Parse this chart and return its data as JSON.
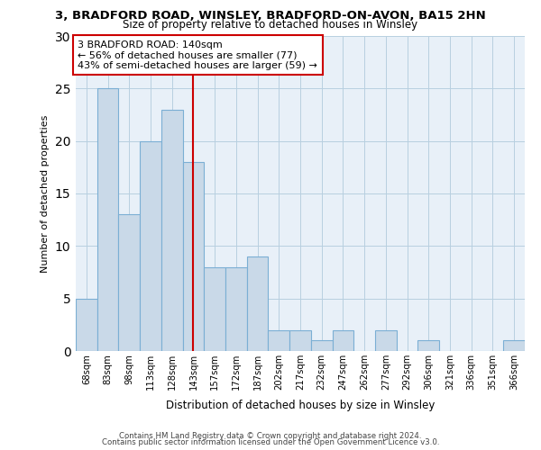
{
  "title_line1": "3, BRADFORD ROAD, WINSLEY, BRADFORD-ON-AVON, BA15 2HN",
  "title_line2": "Size of property relative to detached houses in Winsley",
  "xlabel": "Distribution of detached houses by size in Winsley",
  "ylabel": "Number of detached properties",
  "bin_labels": [
    "68sqm",
    "83sqm",
    "98sqm",
    "113sqm",
    "128sqm",
    "143sqm",
    "157sqm",
    "172sqm",
    "187sqm",
    "202sqm",
    "217sqm",
    "232sqm",
    "247sqm",
    "262sqm",
    "277sqm",
    "292sqm",
    "306sqm",
    "321sqm",
    "336sqm",
    "351sqm",
    "366sqm"
  ],
  "bar_heights": [
    5,
    25,
    13,
    20,
    23,
    18,
    8,
    8,
    9,
    2,
    2,
    1,
    2,
    0,
    2,
    0,
    1,
    0,
    0,
    0,
    1
  ],
  "bar_color": "#c9d9e8",
  "bar_edge_color": "#7bafd4",
  "vline_color": "#cc0000",
  "annotation_text": "3 BRADFORD ROAD: 140sqm\n← 56% of detached houses are smaller (77)\n43% of semi-detached houses are larger (59) →",
  "annotation_box_color": "#cc0000",
  "ylim": [
    0,
    30
  ],
  "yticks": [
    0,
    5,
    10,
    15,
    20,
    25,
    30
  ],
  "grid_color": "#b8cfe0",
  "background_color": "#ffffff",
  "footer_line1": "Contains HM Land Registry data © Crown copyright and database right 2024.",
  "footer_line2": "Contains public sector information licensed under the Open Government Licence v3.0."
}
